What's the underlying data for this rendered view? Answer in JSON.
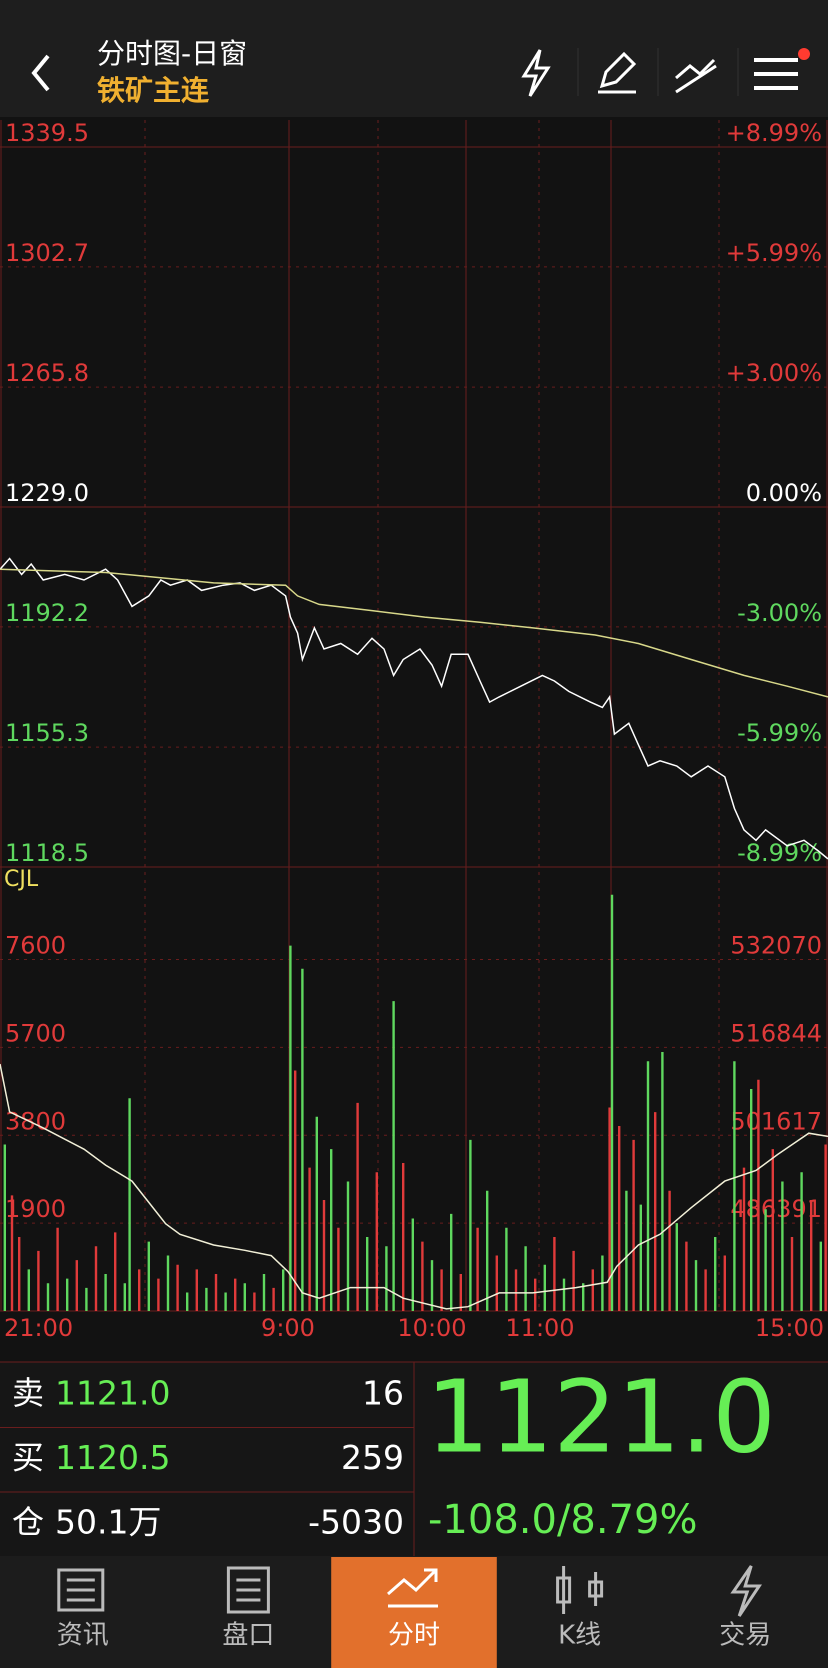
{
  "header": {
    "title": "分时图-日窗",
    "subtitle": "铁矿主连"
  },
  "chart_data": [
    {
      "type": "line",
      "xlim": [
        0,
        345
      ],
      "ylim": [
        1118.5,
        1339.5
      ],
      "yticks": [
        1339.5,
        1302.7,
        1265.8,
        {
          "value": 1229,
          "label": "1229.0"
        },
        1192.2,
        1155.3,
        1118.5
      ],
      "y2lim": [
        -8.99,
        8.99
      ],
      "y2ticks": [
        {
          "value": 8.99,
          "label": "+8.99%"
        },
        {
          "value": 5.99,
          "label": "+5.99%"
        },
        {
          "value": 3,
          "label": "+3.00%"
        },
        {
          "value": 0,
          "label": "0.00%"
        },
        {
          "value": -3,
          "label": "-3.00%"
        },
        {
          "value": -5.99,
          "label": "-5.99%"
        },
        {
          "value": -8.99,
          "label": "-8.99%"
        }
      ],
      "grid": true,
      "series": [
        {
          "color": "#ffffff",
          "x": [
            0,
            4,
            9,
            13,
            18,
            27,
            35,
            44,
            49,
            55,
            62,
            67,
            71,
            78,
            84,
            93,
            100,
            106,
            113,
            119,
            121,
            124,
            126,
            131,
            135,
            142,
            149,
            155,
            160,
            164,
            168,
            175,
            180,
            184,
            188,
            195,
            200,
            204,
            208,
            217,
            226,
            231,
            237,
            246,
            251,
            254,
            256,
            262,
            266,
            270,
            275,
            282,
            288,
            295,
            302,
            306,
            310,
            315,
            319,
            328,
            335,
            341,
            345
          ],
          "values": [
            1209.9,
            1213.2,
            1208.3,
            1211.5,
            1206.6,
            1208.3,
            1206.6,
            1209.9,
            1206.6,
            1198.5,
            1201.7,
            1206.6,
            1205.0,
            1206.6,
            1203.4,
            1205.0,
            1205.7,
            1203.4,
            1205.0,
            1201.7,
            1195.2,
            1190.3,
            1182.2,
            1191.9,
            1185.4,
            1187.1,
            1183.8,
            1188.7,
            1185.4,
            1177.3,
            1182.2,
            1185.4,
            1180.5,
            1174.0,
            1183.8,
            1183.8,
            1175.6,
            1169.1,
            1170.7,
            1174.0,
            1177.3,
            1175.6,
            1172.4,
            1169.1,
            1167.5,
            1170.7,
            1159.3,
            1162.6,
            1156.0,
            1149.5,
            1151.1,
            1149.5,
            1146.2,
            1149.5,
            1146.2,
            1136.5,
            1129.9,
            1126.7,
            1129.9,
            1125.0,
            1126.7,
            1123.4,
            1121.0
          ]
        },
        {
          "color": "#d8d88a",
          "x": [
            0,
            44,
            67,
            89,
            119,
            124,
            133,
            155,
            177,
            200,
            222,
            248,
            266,
            288,
            310,
            328,
            345
          ],
          "values": [
            1209.9,
            1208.9,
            1207.3,
            1205.7,
            1205.0,
            1201.7,
            1199.1,
            1197.2,
            1195.2,
            1193.6,
            1191.9,
            1189.7,
            1187.1,
            1182.2,
            1177.3,
            1174.0,
            1170.7
          ]
        }
      ]
    },
    {
      "type": "bar",
      "label": "CJL",
      "xlim": [
        0,
        345
      ],
      "xticks": [
        {
          "value": 0,
          "label": "21:00"
        },
        {
          "value": 120,
          "label": "9:00"
        },
        {
          "value": 180,
          "label": "10:00"
        },
        {
          "value": 225,
          "label": "11:00"
        },
        {
          "value": 345,
          "label": "15:00"
        }
      ],
      "ylim": [
        0,
        9600
      ],
      "yticks": [
        1900,
        3800,
        5700,
        7600
      ],
      "y2lim": [
        471165,
        548126
      ],
      "y2ticks": [
        486391,
        501617,
        516844,
        532070
      ],
      "grid": true,
      "x": [
        2,
        5,
        8,
        12,
        16,
        20,
        24,
        28,
        32,
        36,
        40,
        44,
        48,
        52,
        54,
        58,
        62,
        66,
        70,
        74,
        78,
        82,
        86,
        90,
        94,
        98,
        102,
        106,
        110,
        114,
        118,
        121,
        123,
        126,
        129,
        132,
        135,
        138,
        141,
        145,
        149,
        153,
        157,
        161,
        164,
        168,
        172,
        176,
        180,
        184,
        188,
        192,
        196,
        199,
        203,
        207,
        211,
        215,
        219,
        223,
        227,
        231,
        235,
        239,
        243,
        247,
        251,
        254,
        255,
        258,
        261,
        264,
        267,
        270,
        273,
        276,
        279,
        282,
        286,
        290,
        294,
        298,
        302,
        306,
        310,
        313,
        316,
        319,
        322,
        326,
        330,
        334,
        338,
        342,
        344
      ],
      "values": [
        3600,
        2500,
        1600,
        900,
        1300,
        600,
        1800,
        700,
        1100,
        500,
        1400,
        800,
        1700,
        600,
        4600,
        900,
        1500,
        700,
        1200,
        1000,
        400,
        900,
        500,
        800,
        400,
        700,
        600,
        400,
        800,
        500,
        900,
        7900,
        5200,
        7400,
        3100,
        4200,
        2400,
        3500,
        1800,
        2800,
        4500,
        1600,
        3000,
        1400,
        6700,
        3200,
        2000,
        1500,
        1100,
        900,
        2100,
        800,
        3700,
        1800,
        2600,
        1200,
        1800,
        900,
        1400,
        700,
        1000,
        1600,
        700,
        1300,
        600,
        900,
        1200,
        4400,
        9000,
        4000,
        2600,
        3700,
        2300,
        5400,
        4300,
        5600,
        2600,
        1900,
        1500,
        1100,
        900,
        1600,
        1200,
        5400,
        3100,
        4800,
        5000,
        2200,
        3500,
        2800,
        1600,
        3000,
        2400,
        1500,
        3600
      ],
      "colors": [
        "#5fd85f",
        "#e03a3a",
        "#e03a3a",
        "#5fd85f",
        "#e03a3a",
        "#5fd85f",
        "#e03a3a",
        "#5fd85f",
        "#e03a3a",
        "#5fd85f",
        "#e03a3a",
        "#5fd85f",
        "#e03a3a",
        "#5fd85f",
        "#5fd85f",
        "#e03a3a",
        "#5fd85f",
        "#e03a3a",
        "#5fd85f",
        "#e03a3a",
        "#5fd85f",
        "#e03a3a",
        "#5fd85f",
        "#e03a3a",
        "#5fd85f",
        "#e03a3a",
        "#5fd85f",
        "#e03a3a",
        "#5fd85f",
        "#e03a3a",
        "#5fd85f",
        "#5fd85f",
        "#e03a3a",
        "#5fd85f",
        "#e03a3a",
        "#5fd85f",
        "#e03a3a",
        "#5fd85f",
        "#e03a3a",
        "#5fd85f",
        "#e03a3a",
        "#5fd85f",
        "#e03a3a",
        "#5fd85f",
        "#5fd85f",
        "#e03a3a",
        "#5fd85f",
        "#e03a3a",
        "#5fd85f",
        "#e03a3a",
        "#5fd85f",
        "#e03a3a",
        "#5fd85f",
        "#e03a3a",
        "#5fd85f",
        "#e03a3a",
        "#5fd85f",
        "#e03a3a",
        "#5fd85f",
        "#e03a3a",
        "#5fd85f",
        "#e03a3a",
        "#5fd85f",
        "#e03a3a",
        "#5fd85f",
        "#e03a3a",
        "#5fd85f",
        "#e03a3a",
        "#5fd85f",
        "#e03a3a",
        "#5fd85f",
        "#e03a3a",
        "#5fd85f",
        "#5fd85f",
        "#e03a3a",
        "#5fd85f",
        "#e03a3a",
        "#5fd85f",
        "#e03a3a",
        "#5fd85f",
        "#e03a3a",
        "#5fd85f",
        "#e03a3a",
        "#5fd85f",
        "#e03a3a",
        "#5fd85f",
        "#e03a3a",
        "#5fd85f",
        "#e03a3a",
        "#5fd85f",
        "#e03a3a",
        "#5fd85f",
        "#e03a3a",
        "#5fd85f",
        "#e03a3a"
      ],
      "series": [
        {
          "axis": "y2",
          "color": "#f2f0d8",
          "x": [
            0,
            4,
            18,
            35,
            44,
            55,
            62,
            69,
            75,
            89,
            102,
            113,
            120,
            126,
            133,
            146,
            160,
            168,
            186,
            195,
            208,
            222,
            240,
            253,
            257,
            266,
            275,
            288,
            302,
            315,
            324,
            337,
            345
          ],
          "values": [
            513983,
            505678,
            502909,
            499218,
            496450,
            493681,
            489990,
            486299,
            484453,
            482608,
            481685,
            480762,
            477994,
            474303,
            473380,
            475225,
            475225,
            473380,
            471534,
            471903,
            474303,
            474303,
            475225,
            476148,
            478917,
            482608,
            484453,
            489067,
            493681,
            495527,
            498295,
            501987,
            501433
          ]
        }
      ]
    }
  ],
  "quote": {
    "rows": [
      {
        "label": "卖",
        "price": "1121.0",
        "qty": 16
      },
      {
        "label": "买",
        "price": "1120.5",
        "qty": 259
      },
      {
        "label": "仓",
        "price": "50.1万",
        "qty": -5030
      }
    ],
    "last": "1121.0",
    "change": "-108.0/8.79%",
    "color": "#66ee55"
  },
  "tabs": [
    "资讯",
    "盘口",
    "分时",
    "K线",
    "交易"
  ],
  "active_tab": 2
}
